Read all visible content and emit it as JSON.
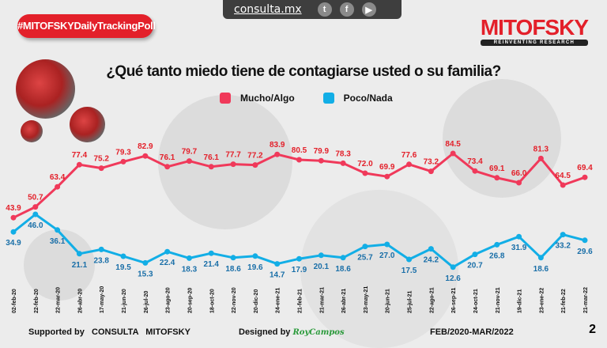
{
  "header": {
    "hashtag": "#MITOFSKYDailyTrackingPoll",
    "site": "consulta.mx",
    "social_icons": [
      "twitter-icon",
      "facebook-icon",
      "youtube-icon"
    ],
    "logo_name": "MITOFSKY",
    "logo_tagline": "REINVENTING RESEARCH"
  },
  "footer": {
    "supported_by": "Supported by   CONSULTA   MITOFSKY",
    "designed_by": "Designed by",
    "designer": "RoyCampos",
    "period": "FEB/2020-MAR/2022",
    "page_number": "2"
  },
  "chart_data": {
    "type": "line",
    "title": "¿Qué tanto miedo tiene de contagiarse usted o su familia?",
    "legend_placement": "top",
    "grid": false,
    "categories": [
      "02-feb-20",
      "22-feb-20",
      "22-mar-20",
      "26-abr-20",
      "17-may-20",
      "21-jun-20",
      "26-jul-20",
      "23-ago-20",
      "20-sep-20",
      "18-oct-20",
      "22-nov-20",
      "20-dic-20",
      "24-ene-21",
      "21-feb-21",
      "21-mar-21",
      "26-abr-21",
      "23-may-21",
      "20-jun-21",
      "25-jul-21",
      "22-ago-21",
      "26-sep-21",
      "24-oct-21",
      "21-nov-21",
      "19-dic-21",
      "23-ene-22",
      "21-feb-22",
      "21-mar-22"
    ],
    "series": [
      {
        "name": "Mucho/Algo",
        "color": "#f0395a",
        "values": [
          43.9,
          50.7,
          63.4,
          77.4,
          75.2,
          79.3,
          82.9,
          76.1,
          79.7,
          76.1,
          77.7,
          77.2,
          83.9,
          80.5,
          79.9,
          78.3,
          72.0,
          69.9,
          77.6,
          73.2,
          84.5,
          73.4,
          69.1,
          66.0,
          81.3,
          64.5,
          69.4
        ]
      },
      {
        "name": "Poco/Nada",
        "color": "#12aee6",
        "values": [
          34.9,
          46.0,
          36.1,
          21.1,
          23.8,
          19.5,
          15.3,
          22.4,
          18.3,
          21.4,
          18.6,
          19.6,
          14.7,
          17.9,
          20.1,
          18.6,
          25.7,
          27.0,
          17.5,
          24.2,
          12.6,
          20.7,
          26.8,
          31.9,
          18.6,
          33.2,
          29.6
        ]
      }
    ],
    "label_colors": {
      "Mucho/Algo": "#e3202a",
      "Poco/Nada": "#1a6fa8"
    }
  }
}
